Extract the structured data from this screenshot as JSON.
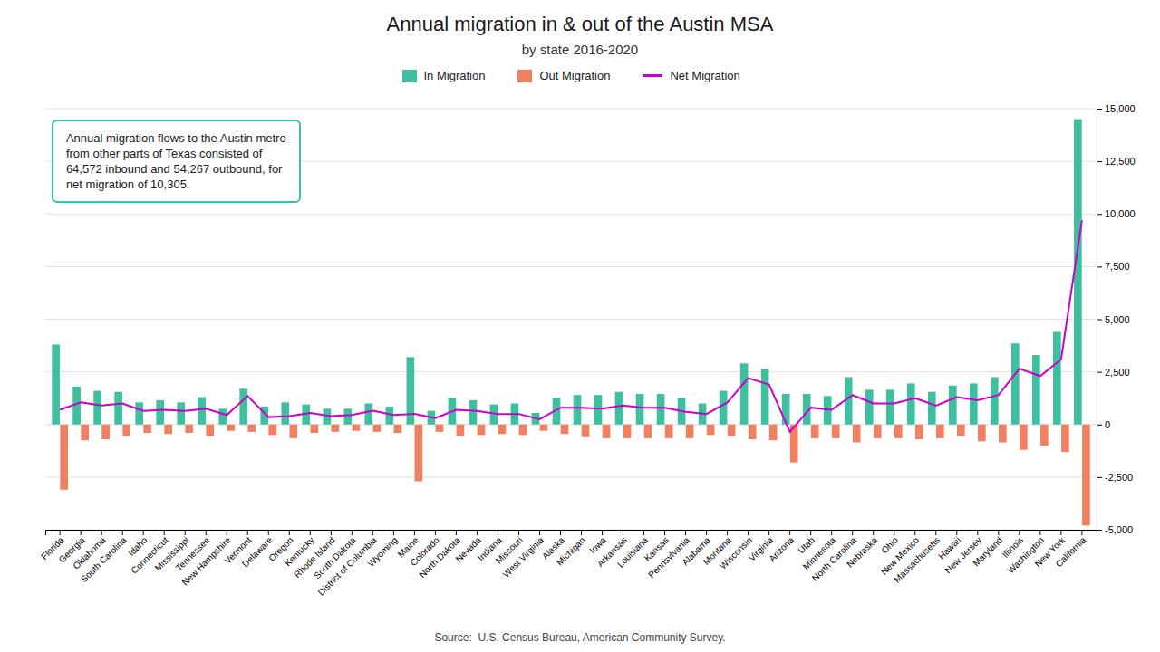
{
  "chart_data": {
    "type": "bar",
    "title": "Annual migration in & out of the Austin MSA",
    "subtitle": "by state 2016-2020",
    "source": "Source:  U.S. Census Bureau, American Community Survey.",
    "annotation": "Annual migration flows to the Austin metro\nfrom other parts of Texas consisted of\n64,572 inbound and 54,267 outbound, for\nnet migration of 10,305.",
    "categories": [
      "Florida",
      "Georgia",
      "Oklahoma",
      "South Carolina",
      "Idaho",
      "Connecticut",
      "Mississippi",
      "Tennessee",
      "New Hampshire",
      "Vermont",
      "Delaware",
      "Oregon",
      "Kentucky",
      "Rhode Island",
      "South Dakota",
      "District of Columbia",
      "Wyoming",
      "Maine",
      "Colorado",
      "North Dakota",
      "Nevada",
      "Indiana",
      "Missouri",
      "West Virginia",
      "Alaska",
      "Michigan",
      "Iowa",
      "Arkansas",
      "Louisiana",
      "Kansas",
      "Pennsylvania",
      "Alabama",
      "Montana",
      "Wisconsin",
      "Virginia",
      "Arizona",
      "Utah",
      "Minnesota",
      "North Carolina",
      "Nebraska",
      "Ohio",
      "New Mexico",
      "Massachusetts",
      "Hawaii",
      "New Jersey",
      "Maryland",
      "Illinois",
      "Washington",
      "New York",
      "California"
    ],
    "series": [
      {
        "name": "In Migration",
        "type": "bar",
        "color": "#3dbfa0",
        "values": [
          3800,
          1800,
          1600,
          1550,
          1050,
          1150,
          1050,
          1300,
          750,
          1700,
          850,
          1050,
          950,
          750,
          750,
          1000,
          850,
          3200,
          650,
          1250,
          1150,
          950,
          1000,
          550,
          1250,
          1400,
          1400,
          1550,
          1450,
          1450,
          1250,
          1000,
          1600,
          2900,
          2650,
          1450,
          1450,
          1350,
          2250,
          1650,
          1650,
          1950,
          1550,
          1850,
          1950,
          2250,
          3850,
          3300,
          4400,
          14500
        ]
      },
      {
        "name": "Out Migration",
        "type": "bar",
        "color": "#f08060",
        "values": [
          -3100,
          -750,
          -700,
          -550,
          -400,
          -450,
          -400,
          -550,
          -300,
          -350,
          -500,
          -650,
          -400,
          -350,
          -300,
          -350,
          -400,
          -2700,
          -350,
          -550,
          -500,
          -450,
          -500,
          -300,
          -450,
          -600,
          -650,
          -650,
          -650,
          -650,
          -650,
          -500,
          -550,
          -700,
          -750,
          -1800,
          -650,
          -650,
          -850,
          -650,
          -650,
          -700,
          -650,
          -550,
          -800,
          -850,
          -1200,
          -1000,
          -1300,
          -4800
        ]
      },
      {
        "name": "Net Migration",
        "type": "line",
        "color": "#cc00cc",
        "values": [
          700,
          1050,
          900,
          1000,
          650,
          700,
          650,
          750,
          450,
          1350,
          350,
          400,
          550,
          400,
          450,
          650,
          450,
          500,
          300,
          700,
          650,
          500,
          500,
          250,
          800,
          800,
          750,
          900,
          800,
          800,
          600,
          500,
          1050,
          2200,
          1900,
          -350,
          800,
          700,
          1400,
          1000,
          1000,
          1250,
          900,
          1300,
          1150,
          1400,
          2650,
          2300,
          3100,
          9700
        ]
      }
    ],
    "ylim": [
      -5000,
      15000
    ],
    "yticks": [
      {
        "value": -5000,
        "label": "-5,000"
      },
      {
        "value": -2500,
        "label": "-2,500"
      },
      0,
      {
        "value": 2500,
        "label": "2,500"
      },
      {
        "value": 5000,
        "label": "5,000"
      },
      {
        "value": 7500,
        "label": "7,500"
      },
      {
        "value": 10000,
        "label": "10,000"
      },
      {
        "value": 12500,
        "label": "12,500"
      },
      {
        "value": 15000,
        "label": "15,000"
      }
    ],
    "grid": true,
    "legend": "top"
  }
}
